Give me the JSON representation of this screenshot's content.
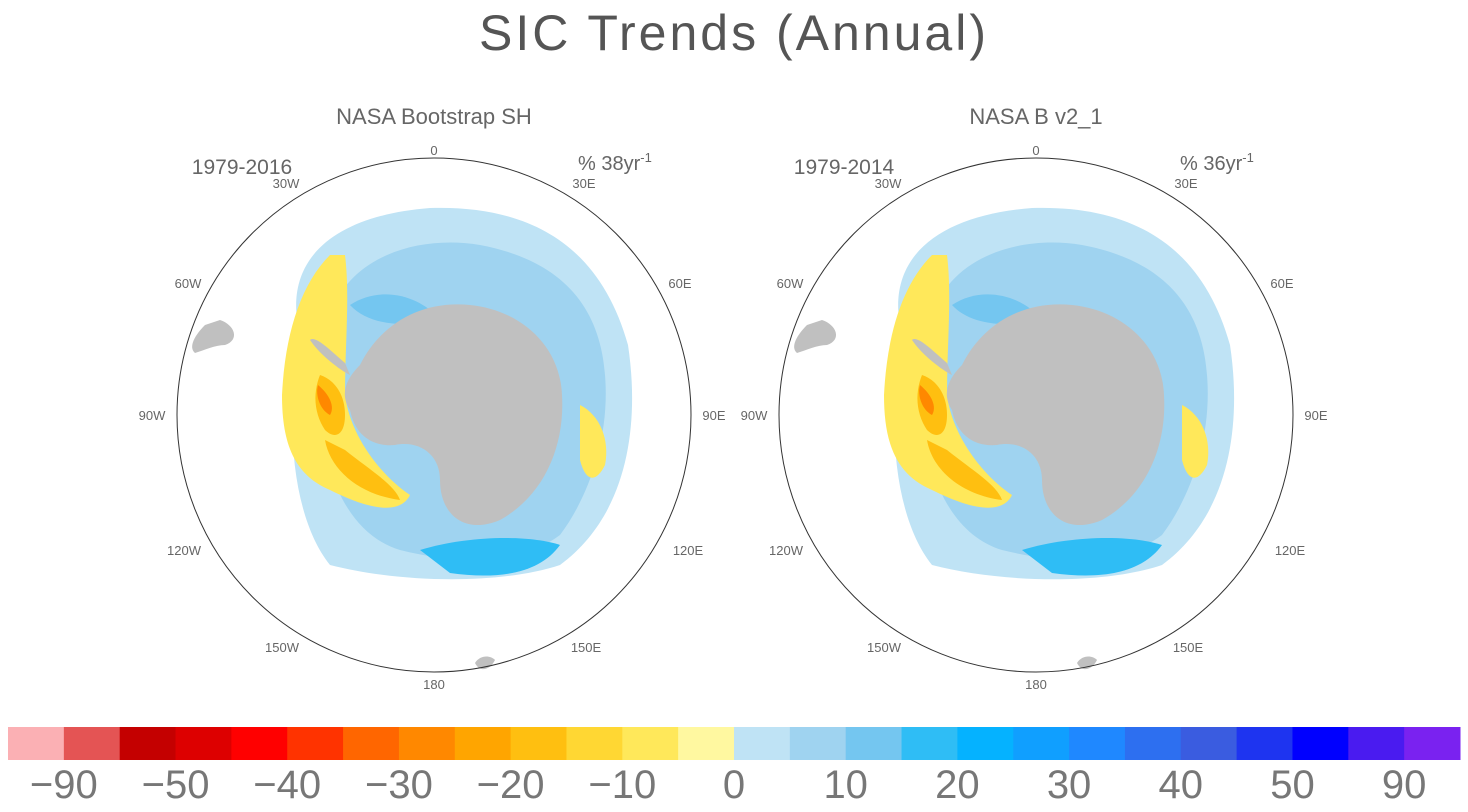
{
  "title": "SIC Trends (Annual)",
  "panels": [
    {
      "title": "NASA Bootstrap SH",
      "period": "1979-2016",
      "units_prefix": "% 38yr",
      "units_exp": "-1"
    },
    {
      "title": "NASA B v2_1",
      "period": "1979-2014",
      "units_prefix": "% 36yr",
      "units_exp": "-1"
    }
  ],
  "lon_labels": {
    "l0": "0",
    "l30e": "30E",
    "l60e": "60E",
    "l90e": "90E",
    "l120e": "120E",
    "l150e": "150E",
    "l180": "180",
    "l150w": "150W",
    "l120w": "120W",
    "l90w": "90W",
    "l60w": "60W",
    "l30w": "30W"
  },
  "colorbar": {
    "colors": [
      "#fbb0b4",
      "#e45454",
      "#c40000",
      "#dd0000",
      "#ff0000",
      "#ff3300",
      "#ff6600",
      "#ff8800",
      "#ffa500",
      "#ffbf10",
      "#ffd733",
      "#ffe85a",
      "#fff8a0",
      "#bfe3f5",
      "#9fd3f0",
      "#74c6f0",
      "#2fbdf5",
      "#05b2ff",
      "#109fff",
      "#1f88ff",
      "#2d6ff0",
      "#3a5ce0",
      "#1e34f0",
      "#0000ff",
      "#4a1bf0",
      "#7a22f0"
    ],
    "labels": [
      "-90",
      "-50",
      "-40",
      "-30",
      "-20",
      "-10",
      "0",
      "10",
      "20",
      "30",
      "40",
      "50",
      "90"
    ]
  },
  "colors": {
    "land": "#c0c0c0",
    "circle": "#333333"
  }
}
